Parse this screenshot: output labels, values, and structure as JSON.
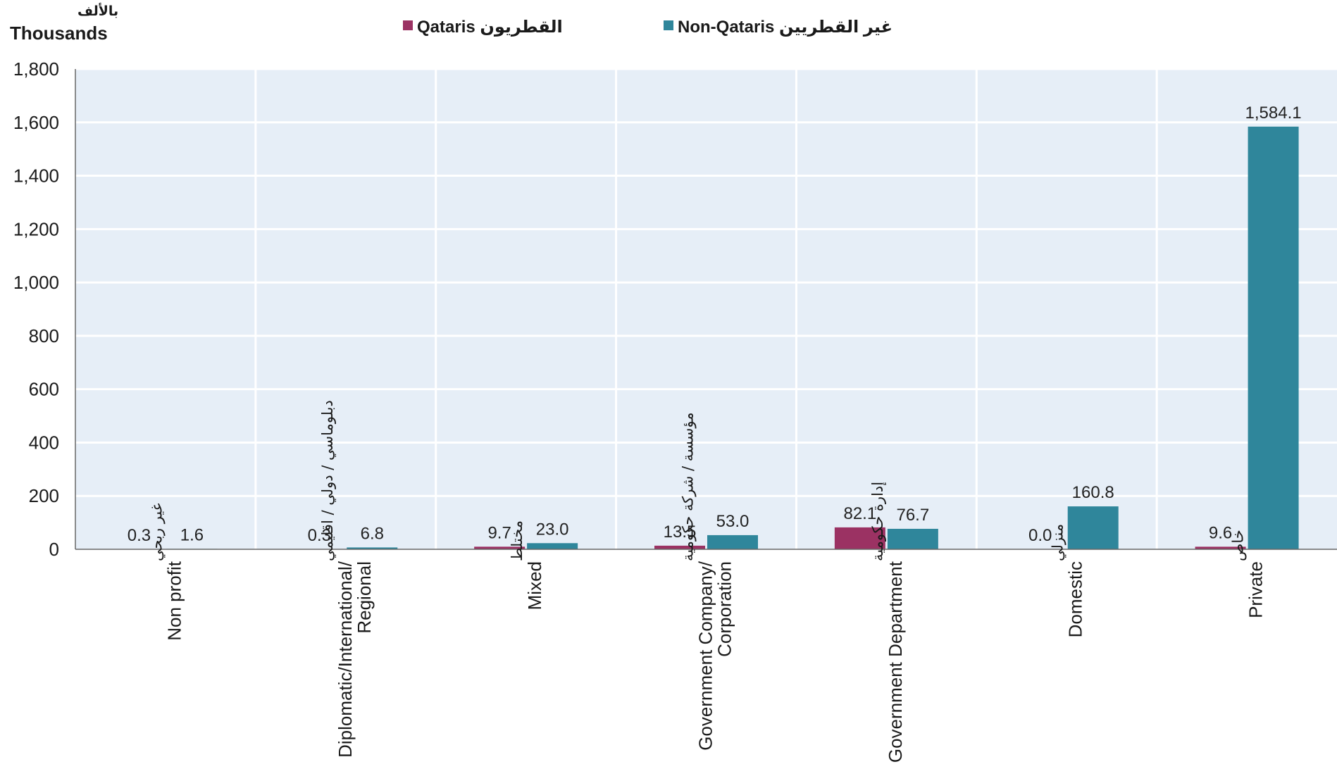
{
  "chart_data": {
    "type": "bar",
    "unit_label_ar": "بالألف",
    "unit_label_en": "Thousands",
    "ylim": [
      0,
      1800
    ],
    "yticks": [
      "0",
      "200",
      "400",
      "600",
      "800",
      "1,000",
      "1,200",
      "1,400",
      "1,600",
      "1,800"
    ],
    "ytick_values": [
      0,
      200,
      400,
      600,
      800,
      1000,
      1200,
      1400,
      1600,
      1800
    ],
    "grid": true,
    "legend_position": "top",
    "categories": [
      {
        "en": [
          "Non profit"
        ],
        "ar": "غير ربحي"
      },
      {
        "en": [
          "Diplomatic/International/",
          "Regional"
        ],
        "ar": "دبلوماسي / دولي / اقليمي"
      },
      {
        "en": [
          "Mixed"
        ],
        "ar": "مختلط"
      },
      {
        "en": [
          "Government Company/",
          "Corporation"
        ],
        "ar": "مؤسسة / شركة حكومية"
      },
      {
        "en": [
          "Government Department"
        ],
        "ar": "إدارة حكومية"
      },
      {
        "en": [
          "Domestic"
        ],
        "ar": "منزلي"
      },
      {
        "en": [
          "Private"
        ],
        "ar": "خاص"
      }
    ],
    "series": [
      {
        "name": "Qataris",
        "name_ar": "القطريون",
        "color": "#9b3263",
        "values": [
          0.3,
          0.3,
          9.7,
          13.5,
          82.1,
          0.0,
          9.6
        ],
        "labels": [
          "0.3",
          "0.3",
          "9.7",
          "13.5",
          "82.1",
          "0.0",
          "9.6"
        ]
      },
      {
        "name": "Non-Qataris",
        "name_ar": "غير القطريين",
        "color": "#2f869b",
        "values": [
          1.6,
          6.8,
          23.0,
          53.0,
          76.7,
          160.8,
          1584.1
        ],
        "labels": [
          "1.6",
          "6.8",
          "23.0",
          "53.0",
          "76.7",
          "160.8",
          "1,584.1"
        ]
      }
    ],
    "plot_background": "#e6eef7"
  }
}
